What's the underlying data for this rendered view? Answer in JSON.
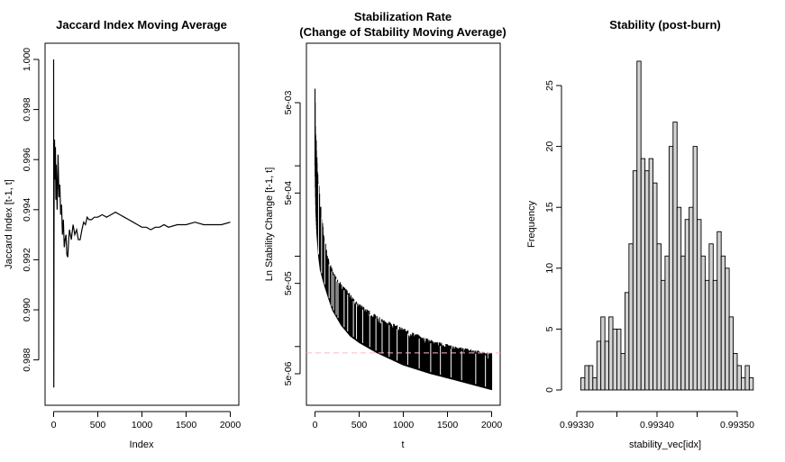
{
  "chart_data": [
    {
      "type": "line",
      "title": "Jaccard Index Moving Average",
      "xlabel": "Index",
      "ylabel": "Jaccard Index [t-1, t]",
      "xlim": [
        0,
        2000
      ],
      "ylim": [
        0.9868,
        1.0
      ],
      "x_ticks": [
        "0",
        "500",
        "1000",
        "1500",
        "2000"
      ],
      "y_ticks": [
        "0.988",
        "0.990",
        "0.992",
        "0.994",
        "0.996",
        "0.998",
        "1.000"
      ],
      "grid": false,
      "series": [
        {
          "x": [
            0,
            2,
            4,
            6,
            10,
            15,
            20,
            25,
            30,
            40,
            50,
            60,
            70,
            80,
            90,
            100,
            110,
            120,
            130,
            140,
            150,
            160,
            170,
            180,
            190,
            200,
            220,
            240,
            260,
            280,
            300,
            320,
            340,
            360,
            380,
            400,
            430,
            460,
            500,
            550,
            600,
            650,
            700,
            750,
            800,
            850,
            900,
            950,
            1000,
            1050,
            1100,
            1150,
            1200,
            1250,
            1300,
            1400,
            1500,
            1600,
            1700,
            1800,
            1900,
            2000
          ],
          "values": [
            1.0,
            0.9869,
            0.9923,
            0.9958,
            0.9968,
            0.9952,
            0.9965,
            0.9944,
            0.9958,
            0.994,
            0.9962,
            0.9945,
            0.995,
            0.9938,
            0.9942,
            0.993,
            0.9936,
            0.9925,
            0.9928,
            0.993,
            0.9922,
            0.9921,
            0.9928,
            0.9932,
            0.993,
            0.9928,
            0.9934,
            0.993,
            0.9932,
            0.9928,
            0.9928,
            0.9932,
            0.9935,
            0.9934,
            0.9937,
            0.9936,
            0.9936,
            0.9937,
            0.9937,
            0.9938,
            0.9937,
            0.9938,
            0.9939,
            0.9938,
            0.9937,
            0.9936,
            0.9935,
            0.9934,
            0.9933,
            0.9933,
            0.9932,
            0.9933,
            0.9933,
            0.9934,
            0.9933,
            0.9934,
            0.9934,
            0.9935,
            0.9934,
            0.9934,
            0.9934,
            0.9935
          ]
        }
      ]
    },
    {
      "type": "line",
      "title": "Stabilization Rate",
      "subtitle": "(Change of Stability Moving Average)",
      "xlabel": "t",
      "ylabel": "Ln Stability Change [t-1, t]",
      "xlim": [
        0,
        2000
      ],
      "ylim": [
        2.2e-06,
        0.012
      ],
      "log_y": true,
      "x_ticks": [
        "0",
        "500",
        "1000",
        "1500",
        "2000"
      ],
      "y_ticks": [
        "5e-06",
        "5e-05",
        "5e-04",
        "5e-03"
      ],
      "reference_line": {
        "y": 8.5e-06,
        "style": "dashed",
        "color": "#ffb6c1"
      },
      "grid": false,
      "upper_envelope": {
        "x": [
          0,
          5,
          10,
          20,
          40,
          60,
          100,
          150,
          200,
          300,
          400,
          500,
          700,
          1000,
          1300,
          1600,
          2000
        ],
        "values": [
          0.0095,
          0.0035,
          0.0025,
          0.0015,
          0.0007,
          0.0004,
          0.00018,
          9.5e-05,
          7e-05,
          5e-05,
          3.8e-05,
          3e-05,
          2.2e-05,
          1.6e-05,
          1.2e-05,
          1e-05,
          8.5e-06
        ]
      },
      "lower_envelope": {
        "x": [
          0,
          5,
          10,
          20,
          40,
          60,
          100,
          150,
          200,
          300,
          400,
          500,
          700,
          1000,
          1300,
          1600,
          2000
        ],
        "values": [
          0.001,
          0.0005,
          0.0003,
          0.00018,
          0.0001,
          7e-05,
          5e-05,
          3.5e-05,
          2.5e-05,
          1.7e-05,
          1.3e-05,
          1.1e-05,
          8.5e-06,
          6.2e-06,
          5e-06,
          4.2e-06,
          3.3e-06
        ]
      }
    },
    {
      "type": "bar",
      "title": "Stability (post-burn)",
      "xlabel": "stability_vec[idx]",
      "ylabel": "Frequency",
      "xlim": [
        0.99329,
        0.993515
      ],
      "ylim": [
        0,
        27.5
      ],
      "x_ticks": [
        "0.99330",
        "0.99340",
        "0.99350"
      ],
      "y_ticks": [
        "0",
        "5",
        "10",
        "15",
        "20",
        "25"
      ],
      "bin_start": 0.993305,
      "bin_width": 5e-06,
      "values": [
        1,
        2,
        2,
        1,
        4,
        6,
        4,
        6,
        5,
        5,
        3,
        8,
        12,
        18,
        27,
        19,
        18,
        19,
        17,
        12,
        9,
        11,
        20,
        22,
        15,
        11,
        14,
        15,
        20,
        14,
        11,
        9,
        12,
        9,
        13,
        11,
        10,
        6,
        3,
        2,
        1,
        2,
        1
      ]
    }
  ]
}
